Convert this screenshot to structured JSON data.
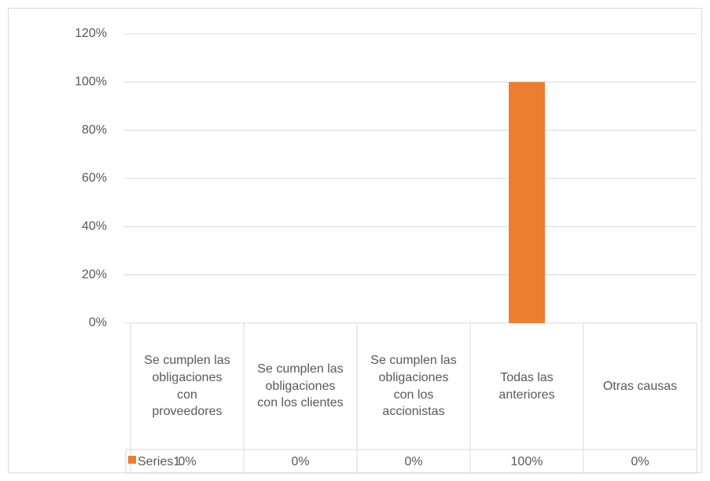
{
  "chart_data": {
    "type": "bar",
    "categories": [
      "Se cumplen las obligaciones con proveedores",
      "Se cumplen las obligaciones con los clientes",
      "Se cumplen las obligaciones con los accionistas",
      "Todas las anteriores",
      "Otras causas"
    ],
    "series": [
      {
        "name": "Series1",
        "color": "#ed7d31",
        "values": [
          0,
          0,
          0,
          100,
          0
        ],
        "value_labels": [
          "0%",
          "0%",
          "0%",
          "100%",
          "0%"
        ]
      }
    ],
    "ylim": [
      0,
      120
    ],
    "yticks": [
      {
        "value": 0,
        "label": "0%"
      },
      {
        "value": 20,
        "label": "20%"
      },
      {
        "value": 40,
        "label": "40%"
      },
      {
        "value": 60,
        "label": "60%"
      },
      {
        "value": 80,
        "label": "80%"
      },
      {
        "value": 100,
        "label": "100%"
      },
      {
        "value": 120,
        "label": "120%"
      }
    ],
    "grid": true
  }
}
